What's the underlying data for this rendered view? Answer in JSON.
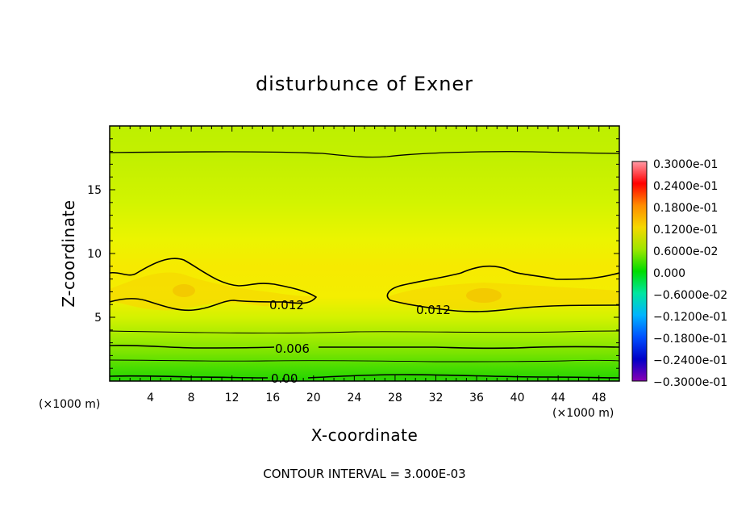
{
  "chart_data": {
    "type": "heatmap",
    "title": "disturbunce of Exner",
    "xlabel": "X-coordinate",
    "ylabel": "Z-coordinate",
    "x_unit": "(×1000 m)",
    "x_unit_right": "(×1000 m)",
    "xlim": [
      0,
      50
    ],
    "ylim": [
      0,
      20
    ],
    "x_ticks": [
      "4",
      "8",
      "12",
      "16",
      "20",
      "24",
      "28",
      "32",
      "36",
      "40",
      "44",
      "48"
    ],
    "x_tick_values": [
      4,
      8,
      12,
      16,
      20,
      24,
      28,
      32,
      36,
      40,
      44,
      48
    ],
    "y_ticks": [
      "5",
      "10",
      "15"
    ],
    "y_tick_values": [
      5,
      10,
      15
    ],
    "footer": "CONTOUR INTERVAL = 3.000E-03",
    "contour_interval": 0.003,
    "colorbar": {
      "range": [
        -0.03,
        0.03
      ],
      "labels": [
        "0.3000e-01",
        "0.2400e-01",
        "0.1800e-01",
        "0.1200e-01",
        "0.6000e-02",
        "0.000",
        "−0.6000e-02",
        "−0.1200e-01",
        "−0.1800e-01",
        "−0.2400e-01",
        "−0.3000e-01"
      ],
      "colors": [
        "#ff9aa6",
        "#ff0000",
        "#ff8c00",
        "#f5d800",
        "#9ee600",
        "#00dc00",
        "#00e6a0",
        "#00b4ff",
        "#0050ff",
        "#0000c8",
        "#8a00b4"
      ]
    },
    "contour_labels": [
      {
        "text": "0.012",
        "x": 17.5,
        "z": 6.2
      },
      {
        "text": "0.012",
        "x": 31.2,
        "z": 5.6
      },
      {
        "text": "0.006",
        "x": 18.2,
        "z": 2.7
      },
      {
        "text": "0.00",
        "x": 17.6,
        "z": 0.3
      }
    ],
    "z_profile": [
      {
        "z": 0.0,
        "value": -0.001
      },
      {
        "z": 0.8,
        "value": 0.001
      },
      {
        "z": 1.6,
        "value": 0.004
      },
      {
        "z": 2.7,
        "value": 0.006
      },
      {
        "z": 4.0,
        "value": 0.009
      },
      {
        "z": 5.5,
        "value": 0.0115
      },
      {
        "z": 7.0,
        "value": 0.0125
      },
      {
        "z": 8.5,
        "value": 0.0118
      },
      {
        "z": 10.0,
        "value": 0.0105
      },
      {
        "z": 12.0,
        "value": 0.0095
      },
      {
        "z": 14.0,
        "value": 0.0085
      },
      {
        "z": 16.0,
        "value": 0.0075
      },
      {
        "z": 18.0,
        "value": 0.0065
      },
      {
        "z": 20.0,
        "value": 0.0055
      }
    ]
  }
}
